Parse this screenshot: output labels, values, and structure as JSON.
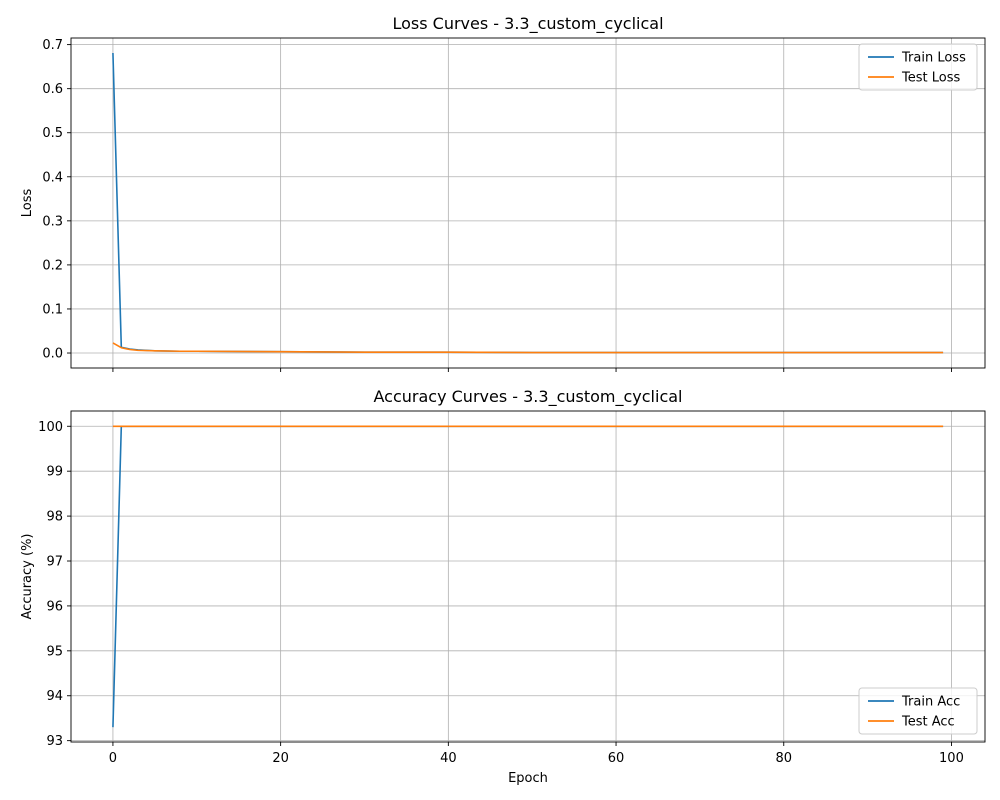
{
  "chart_data": [
    {
      "type": "line",
      "title": "Loss Curves - 3.3_custom_cyclical",
      "xlabel": "",
      "ylabel": "Loss",
      "xlim": [
        -5,
        104
      ],
      "ylim": [
        -0.034,
        0.715
      ],
      "x_ticks": [
        0,
        20,
        40,
        60,
        80,
        100
      ],
      "x_tick_labels_visible": false,
      "y_ticks": [
        0.0,
        0.1,
        0.2,
        0.3,
        0.4,
        0.5,
        0.6,
        0.7
      ],
      "y_tick_labels": [
        "0.0",
        "0.1",
        "0.2",
        "0.3",
        "0.4",
        "0.5",
        "0.6",
        "0.7"
      ],
      "grid": true,
      "legend": "top-right",
      "x": [
        0,
        1,
        2,
        3,
        5,
        8,
        10,
        20,
        30,
        40,
        50,
        60,
        70,
        80,
        90,
        99
      ],
      "series": [
        {
          "name": "Train Loss",
          "color": "#1f77b4",
          "values": [
            0.681,
            0.013,
            0.009,
            0.007,
            0.005,
            0.004,
            0.004,
            0.003,
            0.002,
            0.002,
            0.001,
            0.001,
            0.001,
            0.001,
            0.001,
            0.001
          ]
        },
        {
          "name": "Test Loss",
          "color": "#ff7f0e",
          "values": [
            0.023,
            0.012,
            0.008,
            0.006,
            0.005,
            0.004,
            0.004,
            0.003,
            0.002,
            0.002,
            0.001,
            0.001,
            0.001,
            0.001,
            0.001,
            0.001
          ]
        }
      ]
    },
    {
      "type": "line",
      "title": "Accuracy Curves - 3.3_custom_cyclical",
      "xlabel": "Epoch",
      "ylabel": "Accuracy (%)",
      "xlim": [
        -5,
        104
      ],
      "ylim": [
        92.97,
        100.34
      ],
      "x_ticks": [
        0,
        20,
        40,
        60,
        80,
        100
      ],
      "x_tick_labels": [
        "0",
        "20",
        "40",
        "60",
        "80",
        "100"
      ],
      "x_tick_labels_visible": true,
      "y_ticks": [
        93,
        94,
        95,
        96,
        97,
        98,
        99,
        100
      ],
      "y_tick_labels": [
        "93",
        "94",
        "95",
        "96",
        "97",
        "98",
        "99",
        "100"
      ],
      "grid": true,
      "legend": "bottom-right",
      "x": [
        0,
        1,
        2,
        10,
        20,
        40,
        60,
        80,
        99
      ],
      "series": [
        {
          "name": "Train Acc",
          "color": "#1f77b4",
          "values": [
            93.3,
            100.0,
            100.0,
            100.0,
            100.0,
            100.0,
            100.0,
            100.0,
            100.0
          ]
        },
        {
          "name": "Test Acc",
          "color": "#ff7f0e",
          "values": [
            100.0,
            100.0,
            100.0,
            100.0,
            100.0,
            100.0,
            100.0,
            100.0,
            100.0
          ]
        }
      ]
    }
  ]
}
